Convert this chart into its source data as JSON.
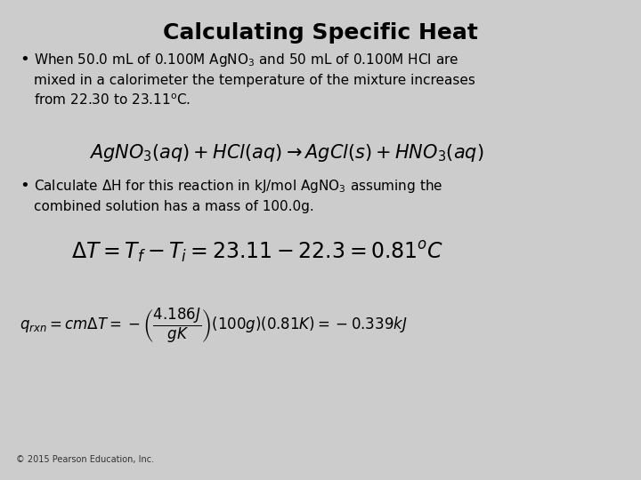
{
  "title": "Calculating Specific Heat",
  "background_color": "#cccccc",
  "text_color": "#000000",
  "title_fontsize": 18,
  "body_fontsize": 11,
  "math_fontsize": 12,
  "eq2_fontsize": 17,
  "eq3_fontsize": 12,
  "small_fontsize": 7,
  "copyright": "© 2015 Pearson Education, Inc."
}
